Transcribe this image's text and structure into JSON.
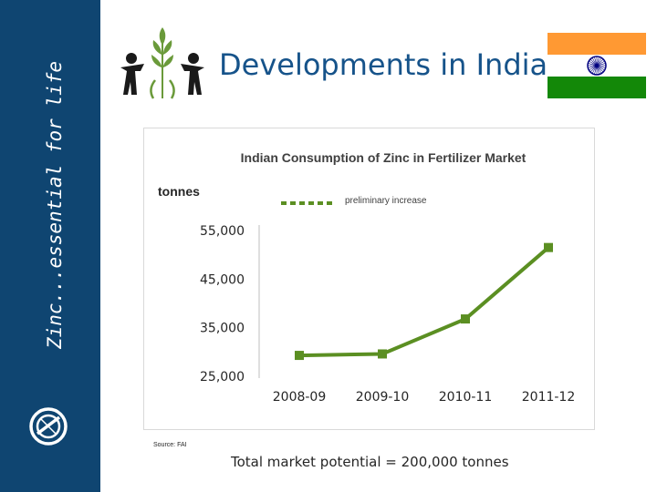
{
  "sidebar": {
    "tagline": "Zinc...essential for life"
  },
  "header": {
    "title": "Developments in India"
  },
  "flag": {
    "saffron": "#ff9933",
    "white": "#ffffff",
    "green": "#138808",
    "chakra": "#000080"
  },
  "colors": {
    "sidebar": "#0f4571",
    "title": "#16538a",
    "series": "#5b8f22"
  },
  "chart_data": {
    "type": "line",
    "title": "Indian Consumption of Zinc in Fertilizer Market",
    "ylabel": "tonnes",
    "categories": [
      "2008-09",
      "2009-10",
      "2010-11",
      "2011-12"
    ],
    "series": [
      {
        "values": [
          29300,
          29600,
          36800,
          51500
        ]
      }
    ],
    "legend": {
      "label": "preliminary increase",
      "style": "dashed",
      "position": "top"
    },
    "yticks": [
      "55,000",
      "45,000",
      "35,000",
      "25,000"
    ],
    "ylim": [
      25000,
      55000
    ],
    "grid": false
  },
  "source": "Source: FAI",
  "footer": "Total market potential = 200,000 tonnes"
}
